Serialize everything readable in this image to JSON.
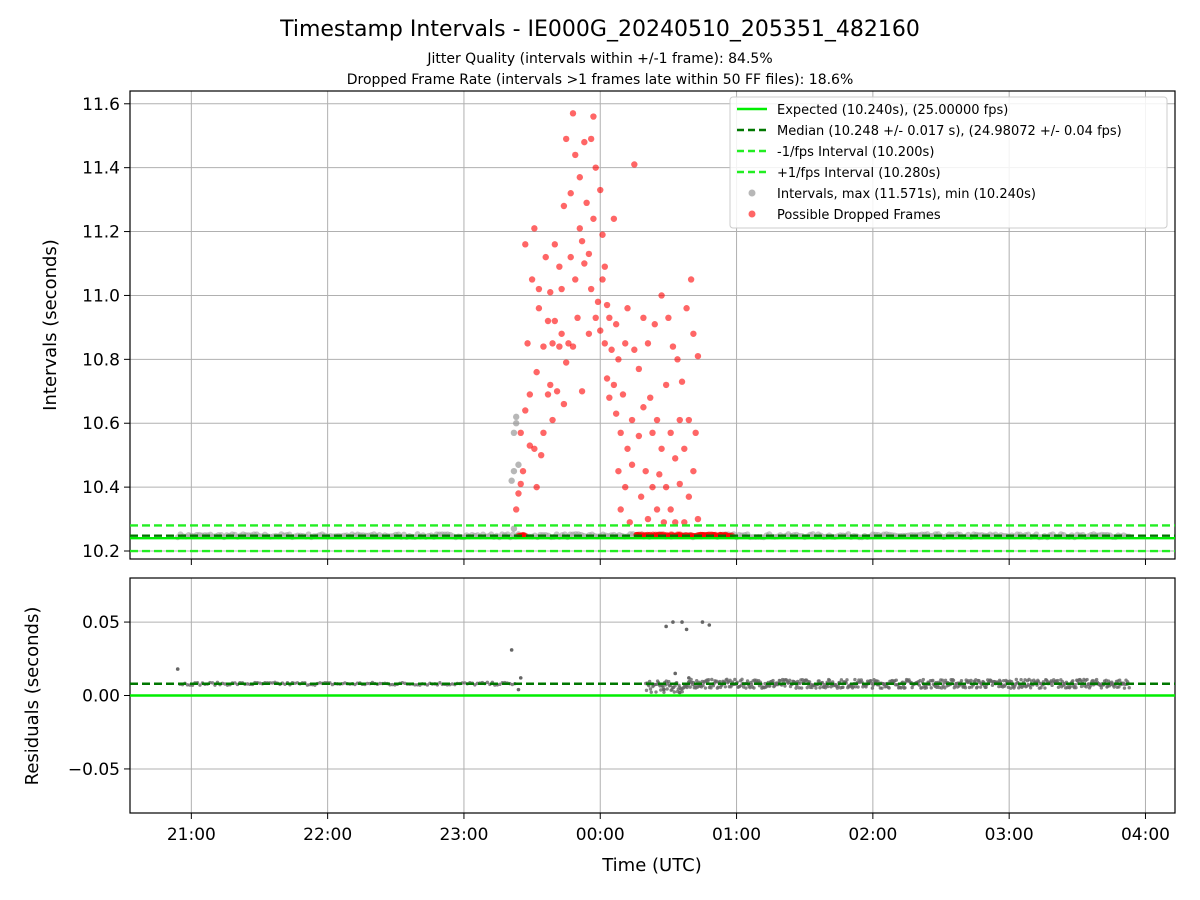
{
  "title": "Timestamp Intervals - IE000G_20240510_205351_482160",
  "subtitle_lines": [
    "Jitter Quality (intervals within +/-1 frame): 84.5%",
    "Dropped Frame Rate (intervals >1 frames late within 50 FF files): 18.6%"
  ],
  "colors": {
    "expected": "#00ee00",
    "median": "#007700",
    "bounds": "#22ee22",
    "intervals": "#999999",
    "dropped": "#ff0000",
    "residuals": "#666666",
    "grid": "#b0b0b0"
  },
  "chart_data": [
    {
      "type": "scatter",
      "ylabel": "Intervals (seconds)",
      "xlabel": "",
      "ylim": [
        10.175,
        11.64
      ],
      "yticks": [
        "10.2",
        "10.4",
        "10.6",
        "10.8",
        "11.0",
        "11.2",
        "11.4",
        "11.6"
      ],
      "ytick_values": [
        10.2,
        10.4,
        10.6,
        10.8,
        11.0,
        11.2,
        11.4,
        11.6
      ],
      "grid": true,
      "legend_position": "top-right",
      "legend": [
        "Expected (10.240s), (25.00000 fps)",
        "Median (10.248 +/- 0.017 s), (24.98072 +/- 0.04 fps)",
        "-1/fps Interval (10.200s)",
        "+1/fps Interval (10.280s)",
        "Intervals, max (11.571s), min (10.240s)",
        "Possible Dropped Frames"
      ],
      "lines": {
        "expected": 10.24,
        "median": 10.248,
        "lower": 10.2,
        "upper": 10.28
      },
      "series": [
        {
          "name": "Intervals, max (11.571s), min (10.240s)",
          "note_baseline_from_to": [
            "20:54",
            "03:53"
          ],
          "points": [
            [
              "23:21",
              10.42
            ],
            [
              "23:22",
              10.45
            ],
            [
              "23:22",
              10.57
            ],
            [
              "23:23",
              10.6
            ],
            [
              "23:23",
              10.62
            ],
            [
              "23:22",
              10.27
            ],
            [
              "23:24",
              10.47
            ]
          ]
        },
        {
          "name": "Possible Dropped Frames",
          "points": [
            [
              "23:23",
              10.33
            ],
            [
              "23:24",
              10.38
            ],
            [
              "23:25",
              10.41
            ],
            [
              "23:25",
              10.57
            ],
            [
              "23:26",
              10.25
            ],
            [
              "23:26",
              10.45
            ],
            [
              "23:27",
              10.64
            ],
            [
              "23:27",
              11.16
            ],
            [
              "23:28",
              10.85
            ],
            [
              "23:29",
              10.69
            ],
            [
              "23:29",
              10.53
            ],
            [
              "23:30",
              11.05
            ],
            [
              "23:31",
              10.52
            ],
            [
              "23:31",
              11.21
            ],
            [
              "23:32",
              10.4
            ],
            [
              "23:32",
              10.76
            ],
            [
              "23:33",
              10.96
            ],
            [
              "23:33",
              11.02
            ],
            [
              "23:34",
              10.5
            ],
            [
              "23:35",
              10.84
            ],
            [
              "23:35",
              10.57
            ],
            [
              "23:36",
              11.12
            ],
            [
              "23:37",
              10.92
            ],
            [
              "23:37",
              10.69
            ],
            [
              "23:38",
              10.72
            ],
            [
              "23:38",
              11.01
            ],
            [
              "23:39",
              10.61
            ],
            [
              "23:39",
              10.85
            ],
            [
              "23:40",
              10.92
            ],
            [
              "23:40",
              11.16
            ],
            [
              "23:41",
              10.7
            ],
            [
              "23:42",
              11.09
            ],
            [
              "23:42",
              10.84
            ],
            [
              "23:43",
              10.88
            ],
            [
              "23:43",
              11.02
            ],
            [
              "23:44",
              10.66
            ],
            [
              "23:44",
              11.28
            ],
            [
              "23:45",
              10.79
            ],
            [
              "23:45",
              11.49
            ],
            [
              "23:46",
              10.85
            ],
            [
              "23:47",
              11.12
            ],
            [
              "23:47",
              11.32
            ],
            [
              "23:48",
              10.84
            ],
            [
              "23:48",
              11.57
            ],
            [
              "23:49",
              11.05
            ],
            [
              "23:49",
              11.44
            ],
            [
              "23:50",
              10.93
            ],
            [
              "23:51",
              11.21
            ],
            [
              "23:51",
              11.37
            ],
            [
              "23:52",
              10.7
            ],
            [
              "23:52",
              11.17
            ],
            [
              "23:53",
              11.48
            ],
            [
              "23:53",
              11.1
            ],
            [
              "23:54",
              11.29
            ],
            [
              "23:55",
              10.88
            ],
            [
              "23:55",
              11.13
            ],
            [
              "23:56",
              11.49
            ],
            [
              "23:56",
              11.02
            ],
            [
              "23:57",
              11.56
            ],
            [
              "23:57",
              11.24
            ],
            [
              "23:58",
              10.93
            ],
            [
              "23:58",
              11.4
            ],
            [
              "23:59",
              10.98
            ],
            [
              "00:00",
              11.33
            ],
            [
              "00:00",
              10.89
            ],
            [
              "00:01",
              11.05
            ],
            [
              "00:01",
              11.19
            ],
            [
              "00:02",
              10.85
            ],
            [
              "00:02",
              11.09
            ],
            [
              "00:03",
              10.97
            ],
            [
              "00:03",
              10.74
            ],
            [
              "00:04",
              10.68
            ],
            [
              "00:04",
              10.93
            ],
            [
              "00:05",
              10.83
            ],
            [
              "00:06",
              11.24
            ],
            [
              "00:06",
              10.72
            ],
            [
              "00:07",
              10.63
            ],
            [
              "00:07",
              10.91
            ],
            [
              "00:08",
              10.45
            ],
            [
              "00:08",
              10.8
            ],
            [
              "00:09",
              10.57
            ],
            [
              "00:09",
              10.33
            ],
            [
              "00:10",
              10.69
            ],
            [
              "00:11",
              10.4
            ],
            [
              "00:11",
              10.85
            ],
            [
              "00:12",
              10.52
            ],
            [
              "00:12",
              10.96
            ],
            [
              "00:13",
              10.29
            ],
            [
              "00:14",
              10.47
            ],
            [
              "00:14",
              10.61
            ],
            [
              "00:15",
              11.41
            ],
            [
              "00:15",
              10.83
            ],
            [
              "00:16",
              10.25
            ],
            [
              "00:17",
              10.56
            ],
            [
              "00:17",
              10.77
            ],
            [
              "00:18",
              10.37
            ],
            [
              "00:19",
              10.93
            ],
            [
              "00:19",
              10.65
            ],
            [
              "00:20",
              10.45
            ],
            [
              "00:21",
              10.85
            ],
            [
              "00:21",
              10.3
            ],
            [
              "00:22",
              10.68
            ],
            [
              "00:23",
              10.57
            ],
            [
              "00:23",
              10.4
            ],
            [
              "00:24",
              10.91
            ],
            [
              "00:25",
              10.33
            ],
            [
              "00:25",
              10.61
            ],
            [
              "00:26",
              10.44
            ],
            [
              "00:27",
              11.0
            ],
            [
              "00:27",
              10.52
            ],
            [
              "00:28",
              10.29
            ],
            [
              "00:29",
              10.72
            ],
            [
              "00:29",
              10.4
            ],
            [
              "00:30",
              10.93
            ],
            [
              "00:31",
              10.57
            ],
            [
              "00:31",
              10.33
            ],
            [
              "00:32",
              10.84
            ],
            [
              "00:33",
              10.49
            ],
            [
              "00:33",
              10.29
            ],
            [
              "00:34",
              10.8
            ],
            [
              "00:35",
              10.61
            ],
            [
              "00:35",
              10.41
            ],
            [
              "00:36",
              10.73
            ],
            [
              "00:37",
              10.52
            ],
            [
              "00:37",
              10.29
            ],
            [
              "00:38",
              10.96
            ],
            [
              "00:39",
              10.37
            ],
            [
              "00:39",
              10.61
            ],
            [
              "00:40",
              11.05
            ],
            [
              "00:41",
              10.45
            ],
            [
              "00:41",
              10.88
            ],
            [
              "00:42",
              10.57
            ],
            [
              "00:43",
              10.3
            ],
            [
              "00:43",
              10.81
            ],
            [
              "00:44",
              10.25
            ],
            [
              "00:45",
              10.25
            ],
            [
              "00:47",
              10.25
            ],
            [
              "00:50",
              10.25
            ],
            [
              "00:53",
              10.25
            ],
            [
              "00:55",
              10.25
            ]
          ]
        }
      ]
    },
    {
      "type": "scatter",
      "ylabel": "Residuals (seconds)",
      "xlabel": "Time (UTC)",
      "ylim": [
        -0.08,
        0.08
      ],
      "yticks": [
        "−0.05",
        "0.00",
        "0.05"
      ],
      "ytick_values": [
        -0.05,
        0.0,
        0.05
      ],
      "xticks": [
        "21:00",
        "22:00",
        "23:00",
        "00:00",
        "01:00",
        "02:00",
        "03:00",
        "04:00"
      ],
      "xlim": [
        "20:33",
        "04:13"
      ],
      "grid": true,
      "lines": {
        "zero": 0.0,
        "median_offset": 0.008
      },
      "series": [
        {
          "name": "",
          "dense_bands": [
            {
              "from": "20:55",
              "to": "23:23",
              "center": 0.008,
              "spread": 0.001
            },
            {
              "from": "00:20",
              "to": "00:40",
              "center": 0.006,
              "spread": 0.004
            },
            {
              "from": "00:40",
              "to": "03:53",
              "center": 0.008,
              "spread": 0.003
            }
          ],
          "outliers": [
            [
              "20:54",
              0.018
            ],
            [
              "23:21",
              0.031
            ],
            [
              "23:25",
              0.012
            ],
            [
              "23:24",
              0.004
            ],
            [
              "00:29",
              0.047
            ],
            [
              "00:32",
              0.05
            ],
            [
              "00:36",
              0.05
            ],
            [
              "00:38",
              0.045
            ],
            [
              "00:45",
              0.05
            ],
            [
              "00:48",
              0.048
            ],
            [
              "00:28",
              0.004
            ],
            [
              "00:33",
              0.015
            ],
            [
              "00:39",
              0.012
            ],
            [
              "00:35",
              0.002
            ]
          ]
        }
      ]
    }
  ]
}
